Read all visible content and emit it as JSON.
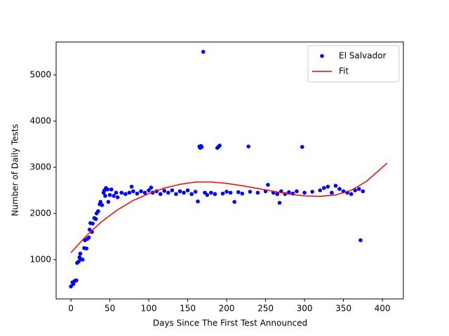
{
  "chart_data": {
    "type": "scatter",
    "x_label": "Days Since The First Test Announced",
    "y_label": "Number of Daily Tests",
    "xlim": [
      -19,
      427
    ],
    "ylim": [
      150,
      5712
    ],
    "xticks": [
      0,
      50,
      100,
      150,
      200,
      250,
      300,
      350,
      400
    ],
    "yticks": [
      1000,
      2000,
      3000,
      4000,
      5000
    ],
    "legend": "upper right",
    "series": [
      {
        "name": "El Salvador",
        "color": "#0000ff",
        "mode": "markers",
        "x": [
          0,
          2,
          3,
          5,
          7,
          8,
          10,
          11,
          12,
          13,
          15,
          17,
          18,
          20,
          21,
          23,
          24,
          25,
          27,
          28,
          30,
          32,
          33,
          35,
          37,
          38,
          40,
          42,
          43,
          44,
          45,
          47,
          48,
          50,
          52,
          55,
          58,
          60,
          65,
          70,
          75,
          78,
          80,
          85,
          90,
          95,
          100,
          103,
          105,
          110,
          115,
          120,
          125,
          130,
          135,
          140,
          145,
          150,
          155,
          160,
          163,
          165,
          166,
          167,
          168,
          170,
          172,
          175,
          180,
          185,
          188,
          190,
          191,
          195,
          200,
          205,
          210,
          215,
          220,
          228,
          230,
          240,
          250,
          253,
          260,
          265,
          268,
          270,
          275,
          280,
          285,
          290,
          297,
          300,
          310,
          320,
          325,
          330,
          335,
          340,
          345,
          350,
          355,
          360,
          365,
          370,
          372,
          375
        ],
        "values": [
          420,
          510,
          470,
          540,
          550,
          930,
          960,
          1050,
          1130,
          1010,
          1000,
          1250,
          1420,
          1240,
          1450,
          1480,
          1650,
          1790,
          1600,
          1780,
          1900,
          1880,
          2000,
          2050,
          2200,
          2250,
          2180,
          2450,
          2500,
          2380,
          2550,
          2520,
          2250,
          2400,
          2520,
          2380,
          2450,
          2350,
          2450,
          2420,
          2450,
          2580,
          2480,
          2430,
          2480,
          2450,
          2500,
          2560,
          2450,
          2480,
          2420,
          2490,
          2450,
          2500,
          2420,
          2480,
          2450,
          2500,
          2420,
          2470,
          2260,
          3450,
          3420,
          3460,
          3440,
          5500,
          2450,
          2400,
          2450,
          2420,
          3420,
          3450,
          3470,
          2430,
          2470,
          2450,
          2250,
          2460,
          2430,
          3450,
          2470,
          2450,
          2480,
          2620,
          2450,
          2420,
          2230,
          2480,
          2420,
          2460,
          2430,
          2480,
          3440,
          2450,
          2470,
          2500,
          2550,
          2580,
          2450,
          2600,
          2530,
          2480,
          2450,
          2420,
          2500,
          2530,
          1420,
          2480
        ]
      },
      {
        "name": "Fit",
        "color": "#ff0000",
        "mode": "line",
        "x": [
          0,
          20,
          40,
          60,
          80,
          100,
          120,
          140,
          160,
          180,
          200,
          220,
          240,
          260,
          280,
          300,
          320,
          340,
          360,
          380,
          406
        ],
        "values": [
          1150,
          1520,
          1830,
          2080,
          2280,
          2430,
          2550,
          2630,
          2680,
          2680,
          2650,
          2600,
          2540,
          2480,
          2420,
          2380,
          2370,
          2400,
          2500,
          2700,
          3090
        ]
      }
    ]
  }
}
